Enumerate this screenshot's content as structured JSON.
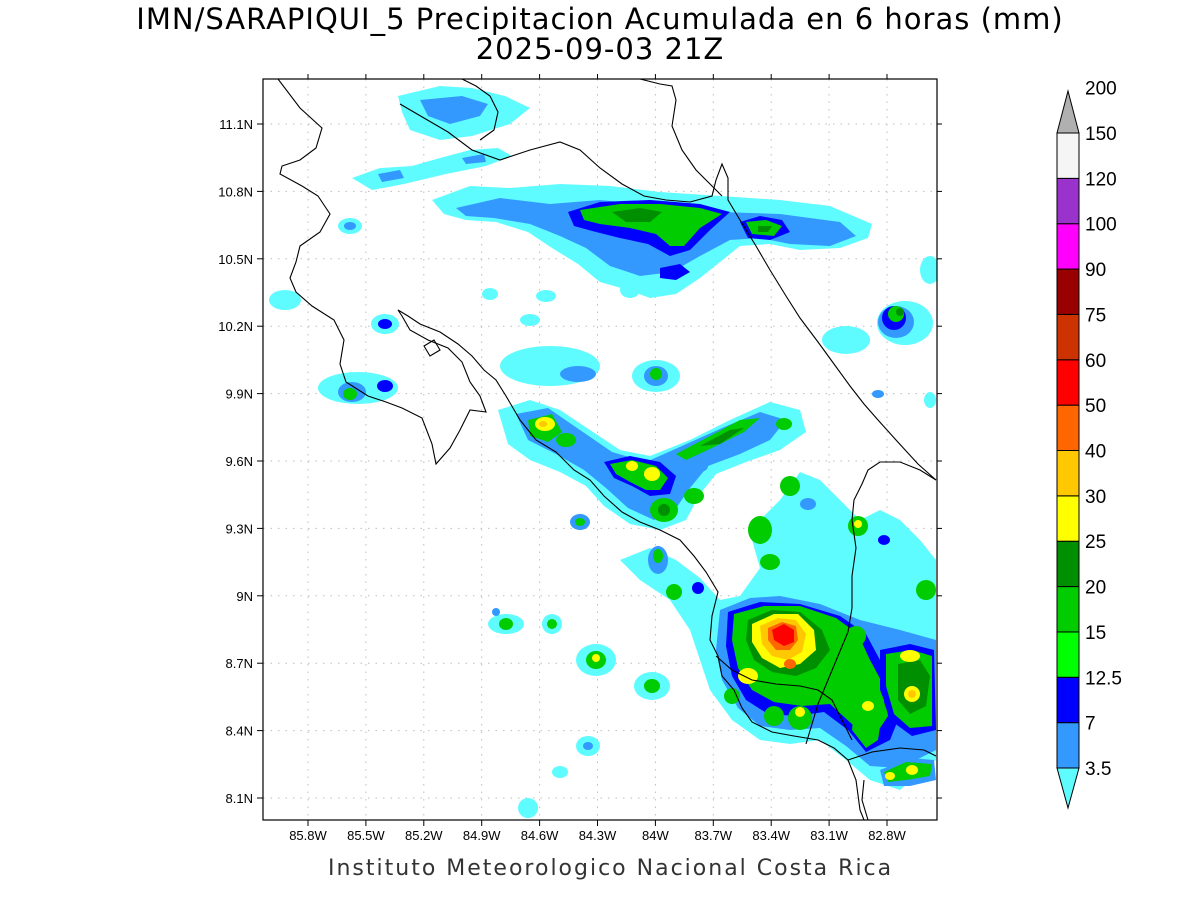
{
  "header": {
    "title": "IMN/SARAPIQUI_5 Precipitacion Acumulada en 6 horas (mm)",
    "datetime": "2025-09-03 21Z"
  },
  "footer": "Instituto Meteorologico Nacional Costa Rica",
  "map": {
    "lon_labels": [
      "85.8W",
      "85.5W",
      "85.2W",
      "84.9W",
      "84.6W",
      "84.3W",
      "84W",
      "83.7W",
      "83.4W",
      "83.1W",
      "82.8W"
    ],
    "lat_labels": [
      "11.1N",
      "10.8N",
      "10.5N",
      "10.2N",
      "9.9N",
      "9.6N",
      "9.3N",
      "9N",
      "8.7N",
      "8.4N",
      "8.1N"
    ]
  },
  "colorbar": {
    "levels": [
      {
        "label": "3.5",
        "color": "#5ffcff"
      },
      {
        "label": "7",
        "color": "#3399ff"
      },
      {
        "label": "12.5",
        "color": "#0000ff"
      },
      {
        "label": "15",
        "color": "#00ff00"
      },
      {
        "label": "20",
        "color": "#00cc00"
      },
      {
        "label": "25",
        "color": "#008f00"
      },
      {
        "label": "30",
        "color": "#ffff00"
      },
      {
        "label": "40",
        "color": "#ffc800"
      },
      {
        "label": "50",
        "color": "#ff6600"
      },
      {
        "label": "60",
        "color": "#ff0000"
      },
      {
        "label": "75",
        "color": "#cc3300"
      },
      {
        "label": "90",
        "color": "#990000"
      },
      {
        "label": "100",
        "color": "#ff00ff"
      },
      {
        "label": "120",
        "color": "#9933cc"
      },
      {
        "label": "150",
        "color": "#f5f5f5"
      },
      {
        "label": "200",
        "color": "#b0b0b0"
      }
    ]
  }
}
